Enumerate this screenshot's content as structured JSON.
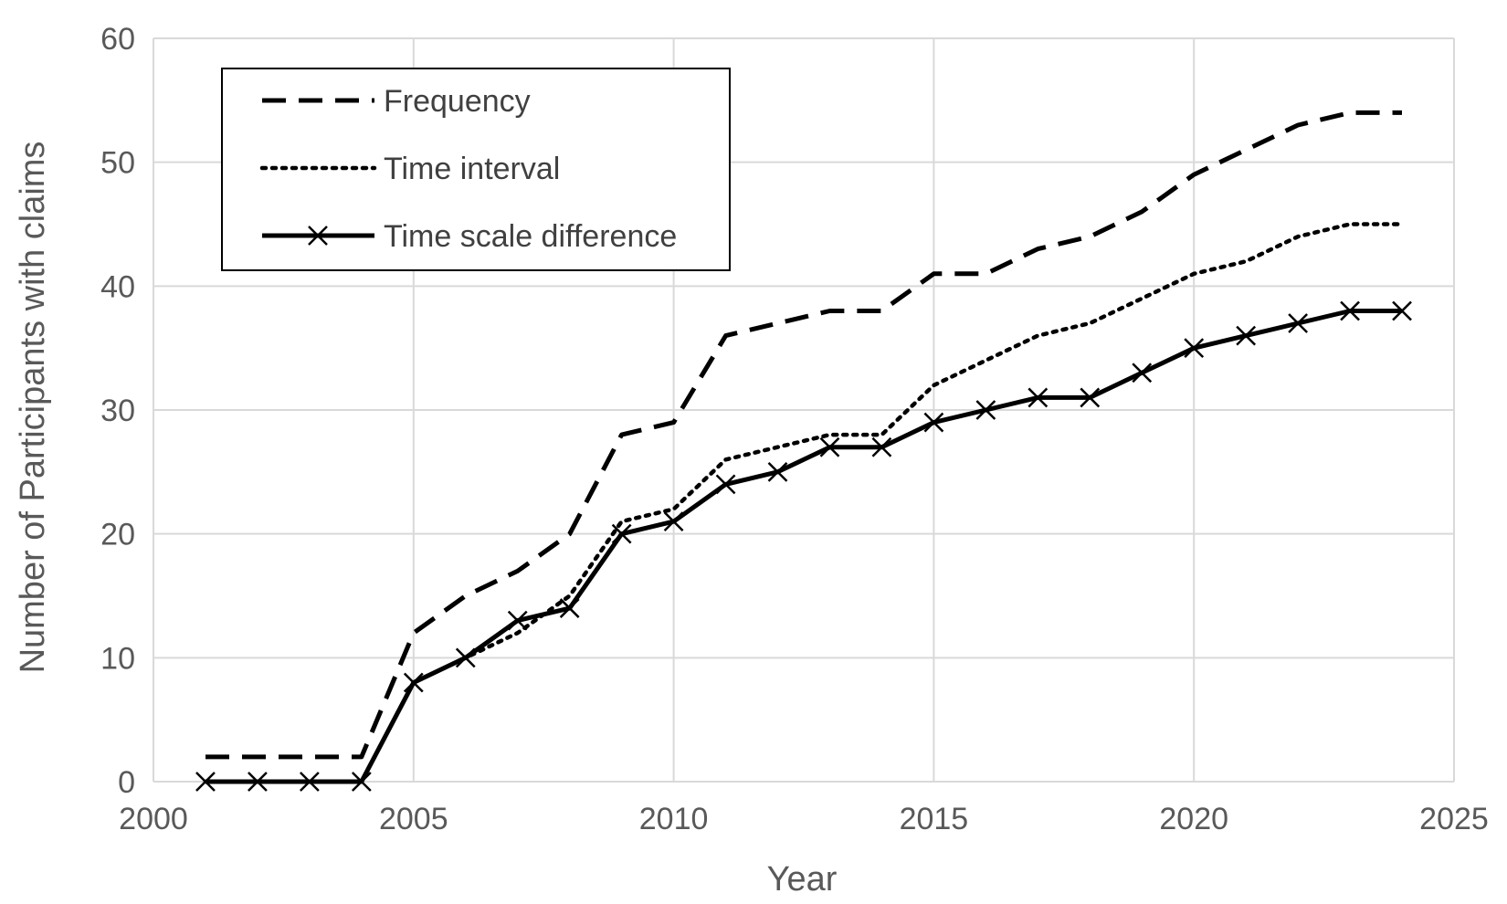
{
  "chart_data": {
    "type": "line",
    "title": "",
    "xlabel": "Year",
    "ylabel": "Number of Participants with claims",
    "xlim": [
      2000,
      2025
    ],
    "ylim": [
      0,
      60
    ],
    "x_ticks": [
      "2000",
      "2005",
      "2010",
      "2015",
      "2020",
      "2025"
    ],
    "y_ticks": [
      "0",
      "10",
      "20",
      "30",
      "40",
      "50",
      "60"
    ],
    "grid": true,
    "legend_position": "top-left",
    "x": [
      2001,
      2002,
      2003,
      2004,
      2005,
      2006,
      2007,
      2008,
      2009,
      2010,
      2011,
      2012,
      2013,
      2014,
      2015,
      2016,
      2017,
      2018,
      2019,
      2020,
      2021,
      2022,
      2023,
      2024
    ],
    "series": [
      {
        "name": "Frequency",
        "style": "dashed",
        "color": "#000000",
        "values": [
          2,
          2,
          2,
          2,
          12,
          15,
          17,
          20,
          28,
          29,
          36,
          37,
          38,
          38,
          41,
          41,
          43,
          44,
          46,
          49,
          51,
          53,
          54,
          54
        ]
      },
      {
        "name": "Time interval",
        "style": "dotted",
        "color": "#000000",
        "values": [
          0,
          0,
          0,
          0,
          8,
          10,
          12,
          15,
          21,
          22,
          26,
          27,
          28,
          28,
          32,
          34,
          36,
          37,
          39,
          41,
          42,
          44,
          45,
          45
        ]
      },
      {
        "name": "Time scale difference",
        "style": "solid-x-markers",
        "color": "#000000",
        "values": [
          0,
          0,
          0,
          0,
          8,
          10,
          13,
          14,
          20,
          21,
          24,
          25,
          27,
          27,
          29,
          30,
          31,
          31,
          33,
          35,
          36,
          37,
          38,
          38
        ]
      }
    ]
  }
}
